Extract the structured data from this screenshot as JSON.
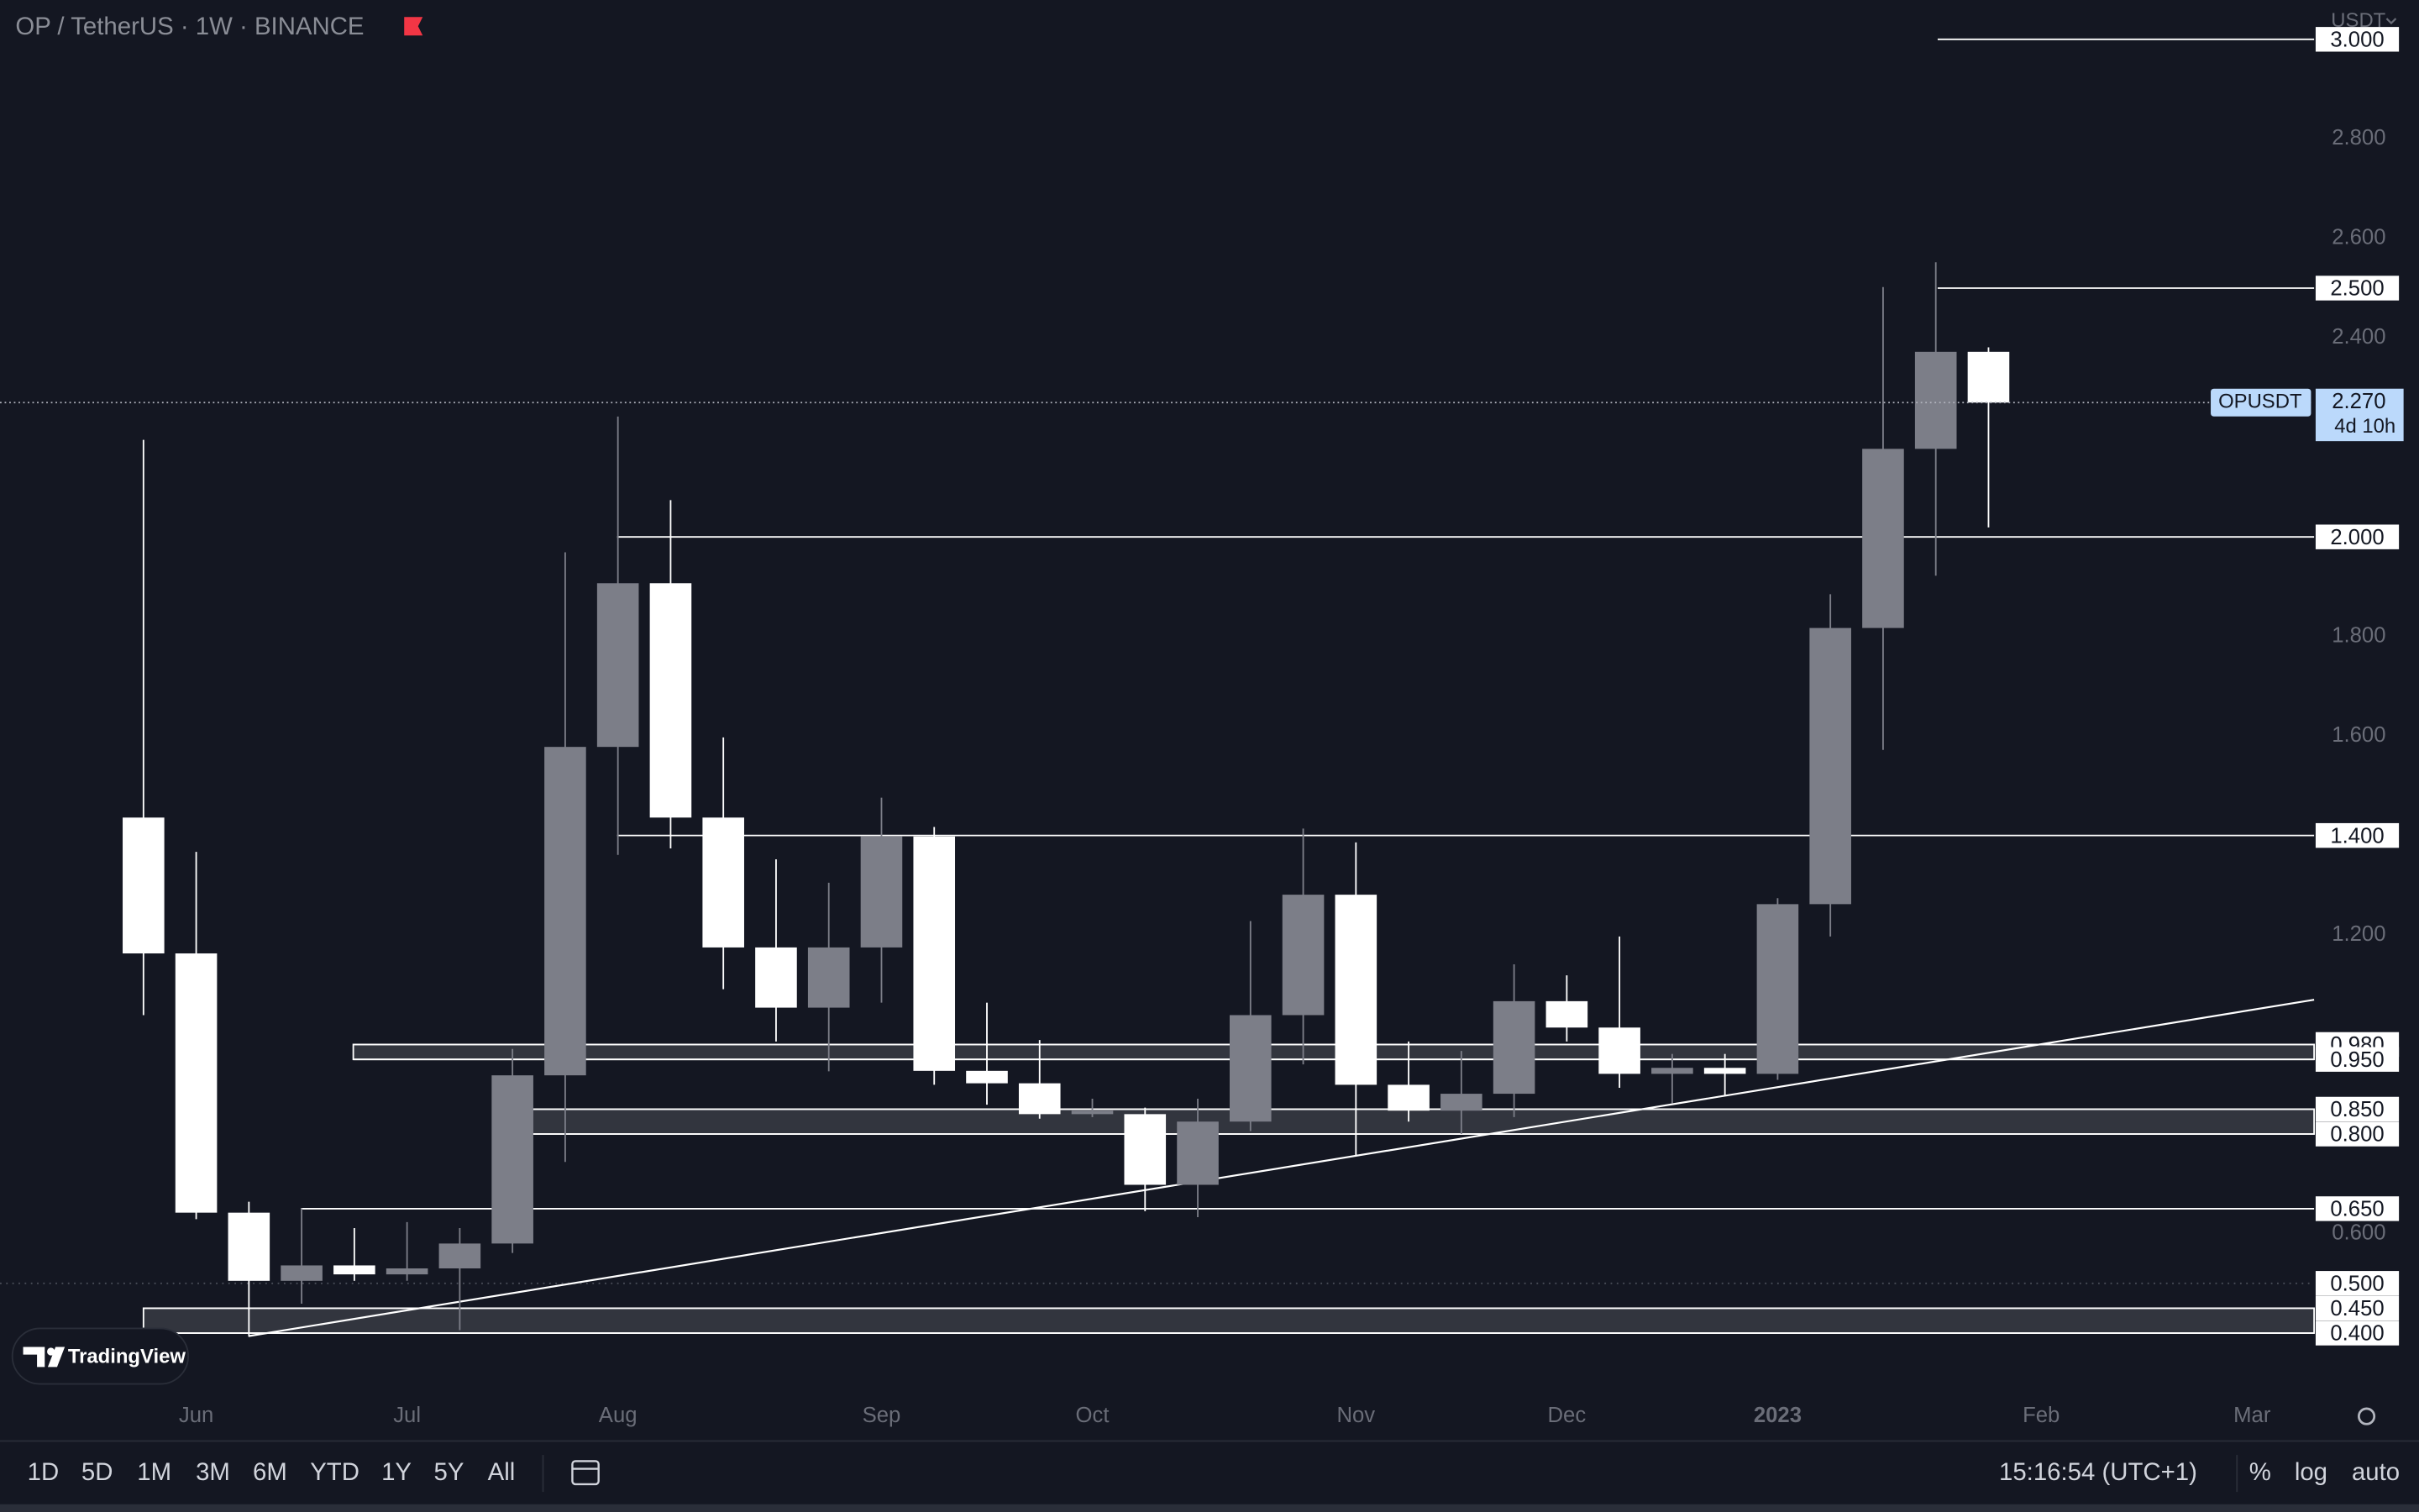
{
  "header": {
    "symbol": "OP / TetherUS · 1W · BINANCE",
    "currency": "USDT"
  },
  "chart_data": {
    "type": "candlestick",
    "categories": [
      null,
      "Jun",
      null,
      null,
      null,
      "Jul",
      null,
      null,
      null,
      "Aug",
      null,
      null,
      null,
      null,
      "Sep",
      null,
      null,
      null,
      "Oct",
      null,
      null,
      null,
      null,
      "Nov",
      null,
      null,
      null,
      "Dec",
      null,
      null,
      null,
      "2023",
      null,
      null,
      null,
      null,
      "Feb",
      null,
      null,
      null,
      "Mar"
    ],
    "open": [
      1.436,
      1.163,
      0.642,
      0.505,
      0.536,
      0.518,
      0.53,
      0.58,
      0.918,
      1.578,
      1.907,
      1.436,
      1.175,
      1.054,
      1.175,
      1.398,
      0.927,
      0.902,
      0.84,
      0.84,
      0.698,
      0.825,
      1.039,
      1.281,
      0.899,
      0.847,
      0.881,
      1.067,
      1.014,
      0.921,
      0.933,
      0.921,
      1.262,
      1.817,
      2.177,
      2.372,
      null,
      null,
      null,
      null,
      null
    ],
    "high": [
      2.195,
      1.367,
      0.664,
      0.651,
      0.611,
      0.623,
      0.611,
      0.971,
      1.969,
      2.242,
      2.074,
      1.597,
      1.352,
      1.305,
      1.476,
      1.417,
      1.064,
      0.989,
      0.871,
      0.853,
      0.871,
      1.228,
      1.414,
      1.386,
      0.986,
      0.967,
      1.141,
      1.119,
      1.197,
      0.961,
      0.961,
      1.274,
      1.885,
      2.502,
      2.552,
      2.381,
      null,
      null,
      null,
      null,
      null
    ],
    "low": [
      1.039,
      0.629,
      0.394,
      0.459,
      0.505,
      0.505,
      0.406,
      0.561,
      0.744,
      1.361,
      1.374,
      1.091,
      0.986,
      0.926,
      1.064,
      0.899,
      0.859,
      0.831,
      0.834,
      0.645,
      0.633,
      0.806,
      0.94,
      0.757,
      0.825,
      0.8,
      0.834,
      0.986,
      0.893,
      0.862,
      0.878,
      0.909,
      1.197,
      1.572,
      1.922,
      2.019,
      null,
      null,
      null,
      null,
      null
    ],
    "close": [
      1.163,
      0.642,
      0.505,
      0.536,
      0.518,
      0.53,
      0.58,
      0.918,
      1.578,
      1.907,
      1.436,
      1.175,
      1.054,
      1.175,
      1.398,
      0.927,
      0.902,
      0.84,
      0.847,
      0.698,
      0.825,
      1.039,
      1.281,
      0.899,
      0.847,
      0.881,
      1.067,
      1.014,
      0.921,
      0.933,
      0.921,
      1.262,
      1.817,
      2.177,
      2.372,
      2.27,
      null,
      null,
      null,
      null,
      null
    ],
    "up_color": "#7c7e88",
    "down_color": "#ffffff",
    "ylim": [
      0.273,
      3.079
    ],
    "yticks": [
      {
        "value": 0.6,
        "label": "0.600"
      },
      {
        "value": 1.2,
        "label": "1.200"
      },
      {
        "value": 1.6,
        "label": "1.600"
      },
      {
        "value": 1.8,
        "label": "1.800"
      },
      {
        "value": 2.4,
        "label": "2.400"
      },
      {
        "value": 2.6,
        "label": "2.600"
      },
      {
        "value": 2.8,
        "label": "2.800"
      }
    ],
    "levels": [
      {
        "value": 3.0,
        "label": "3.000"
      },
      {
        "value": 2.5,
        "label": "2.500"
      },
      {
        "value": 2.0,
        "label": "2.000"
      },
      {
        "value": 1.4,
        "label": "1.400"
      },
      {
        "value": 0.98,
        "label": "0.980"
      },
      {
        "value": 0.95,
        "label": "0.950"
      },
      {
        "value": 0.85,
        "label": "0.850"
      },
      {
        "value": 0.8,
        "label": "0.800"
      },
      {
        "value": 0.65,
        "label": "0.650"
      },
      {
        "value": 0.5,
        "label": "0.500"
      },
      {
        "value": 0.45,
        "label": "0.450"
      },
      {
        "value": 0.4,
        "label": "0.400"
      }
    ],
    "last_price": {
      "name": "OPUSDT",
      "label": "2.270",
      "countdown": "4d 10h"
    }
  },
  "branding": "TradingView",
  "toolbar": {
    "ranges": [
      "1D",
      "5D",
      "1M",
      "3M",
      "6M",
      "YTD",
      "1Y",
      "5Y",
      "All"
    ],
    "time": "15:16:54 (UTC+1)",
    "options": [
      "%",
      "log",
      "auto"
    ]
  }
}
